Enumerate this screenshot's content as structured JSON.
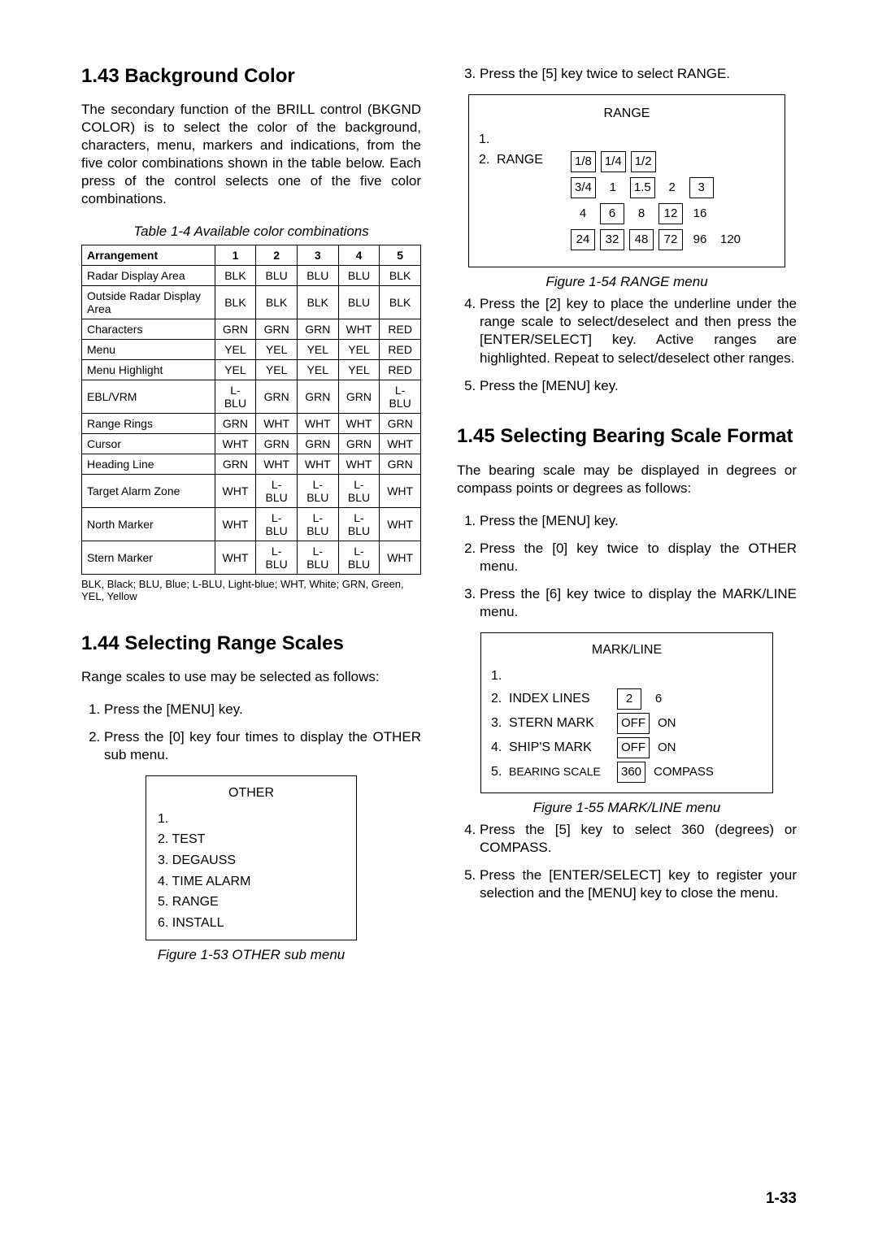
{
  "page_number": "1-33",
  "left": {
    "sec143": {
      "heading": "1.43 Background Color",
      "para": "The secondary function of the BRILL control (BKGND COLOR) is to select the color of the background, characters, menu, markers and indications, from the five color combinations shown in the table below. Each press of the control selects one of the five color combinations.",
      "table_caption": "Table 1-4 Available color combinations",
      "table": {
        "headers": [
          "Arrangement",
          "1",
          "2",
          "3",
          "4",
          "5"
        ],
        "rows": [
          [
            "Radar Display Area",
            "BLK",
            "BLU",
            "BLU",
            "BLU",
            "BLK"
          ],
          [
            "Outside Radar Display Area",
            "BLK",
            "BLK",
            "BLK",
            "BLU",
            "BLK"
          ],
          [
            "Characters",
            "GRN",
            "GRN",
            "GRN",
            "WHT",
            "RED"
          ],
          [
            "Menu",
            "YEL",
            "YEL",
            "YEL",
            "YEL",
            "RED"
          ],
          [
            "Menu Highlight",
            "YEL",
            "YEL",
            "YEL",
            "YEL",
            "RED"
          ],
          [
            "EBL/VRM",
            "L-BLU",
            "GRN",
            "GRN",
            "GRN",
            "L-BLU"
          ],
          [
            "Range Rings",
            "GRN",
            "WHT",
            "WHT",
            "WHT",
            "GRN"
          ],
          [
            "Cursor",
            "WHT",
            "GRN",
            "GRN",
            "GRN",
            "WHT"
          ],
          [
            "Heading Line",
            "GRN",
            "WHT",
            "WHT",
            "WHT",
            "GRN"
          ],
          [
            "Target Alarm Zone",
            "WHT",
            "L-BLU",
            "L-BLU",
            "L-BLU",
            "WHT"
          ],
          [
            "North Marker",
            "WHT",
            "L-BLU",
            "L-BLU",
            "L-BLU",
            "WHT"
          ],
          [
            "Stern Marker",
            "WHT",
            "L-BLU",
            "L-BLU",
            "L-BLU",
            "WHT"
          ]
        ]
      },
      "legend": "BLK, Black; BLU, Blue; L-BLU, Light-blue; WHT, White; GRN, Green, YEL, Yellow"
    },
    "sec144": {
      "heading": "1.44 Selecting Range Scales",
      "para": "Range scales to use may be selected as follows:",
      "steps": [
        "Press the [MENU] key.",
        "Press the [0] key four times to display the OTHER sub menu."
      ],
      "menu": {
        "title": "OTHER",
        "items": [
          "1.",
          "2.  TEST",
          "3.  DEGAUSS",
          "4.  TIME ALARM",
          "5.  RANGE",
          "6.  INSTALL"
        ]
      },
      "fig_caption": "Figure 1-53 OTHER sub menu"
    }
  },
  "right": {
    "step3": "Press the [5] key twice to select RANGE.",
    "range_menu": {
      "title": "RANGE",
      "row1_num": "1.",
      "row2_num": "2.",
      "row2_label": "RANGE",
      "lines": [
        [
          {
            "t": "1/8",
            "b": true
          },
          {
            "t": "1/4",
            "b": true
          },
          {
            "t": "1/2",
            "b": true
          }
        ],
        [
          {
            "t": "3/4",
            "b": true
          },
          {
            "t": "1",
            "b": false
          },
          {
            "t": "1.5",
            "b": true
          },
          {
            "t": "2",
            "b": false
          },
          {
            "t": "3",
            "b": true
          }
        ],
        [
          {
            "t": "4",
            "b": false
          },
          {
            "t": "6",
            "b": true
          },
          {
            "t": "8",
            "b": false
          },
          {
            "t": "12",
            "b": true
          },
          {
            "t": "16",
            "b": false
          }
        ],
        [
          {
            "t": "24",
            "b": true
          },
          {
            "t": "32",
            "b": true
          },
          {
            "t": "48",
            "b": true
          },
          {
            "t": "72",
            "b": true
          },
          {
            "t": "96",
            "b": false
          },
          {
            "t": "120",
            "b": false
          }
        ]
      ]
    },
    "fig54_caption": "Figure 1-54 RANGE menu",
    "step4": "Press the [2] key to place the underline under the range scale to select/deselect and then press the [ENTER/SELECT] key. Active ranges are highlighted. Repeat to select/deselect other ranges.",
    "step5": "Press the [MENU] key.",
    "sec145": {
      "heading": "1.45 Selecting Bearing Scale Format",
      "para": "The bearing scale may be displayed in degrees or compass points or degrees as follows:",
      "steps123": [
        "Press the [MENU] key.",
        "Press the [0] key twice to display the OTHER menu.",
        "Press the [6] key twice to display the MARK/LINE menu."
      ],
      "markline": {
        "title": "MARK/LINE",
        "rows": [
          {
            "num": "1.",
            "label": "",
            "opts": []
          },
          {
            "num": "2.",
            "label": "INDEX LINES",
            "opts": [
              {
                "t": "2",
                "b": true
              },
              {
                "t": "6",
                "b": false
              }
            ]
          },
          {
            "num": "3.",
            "label": "STERN MARK",
            "opts": [
              {
                "t": "OFF",
                "b": true
              },
              {
                "t": "ON",
                "b": false
              }
            ]
          },
          {
            "num": "4.",
            "label": "SHIP'S MARK",
            "opts": [
              {
                "t": "OFF",
                "b": true
              },
              {
                "t": "ON",
                "b": false
              }
            ]
          },
          {
            "num": "5.",
            "label": "BEARING SCALE",
            "opts": [
              {
                "t": "360",
                "b": true
              },
              {
                "t": "COMPASS",
                "b": false
              }
            ]
          }
        ]
      },
      "fig55_caption": "Figure 1-55 MARK/LINE menu",
      "steps45": [
        "Press the [5] key to select 360 (degrees) or COMPASS.",
        "Press the [ENTER/SELECT] key to register your selection and the [MENU] key to close the menu."
      ]
    }
  }
}
